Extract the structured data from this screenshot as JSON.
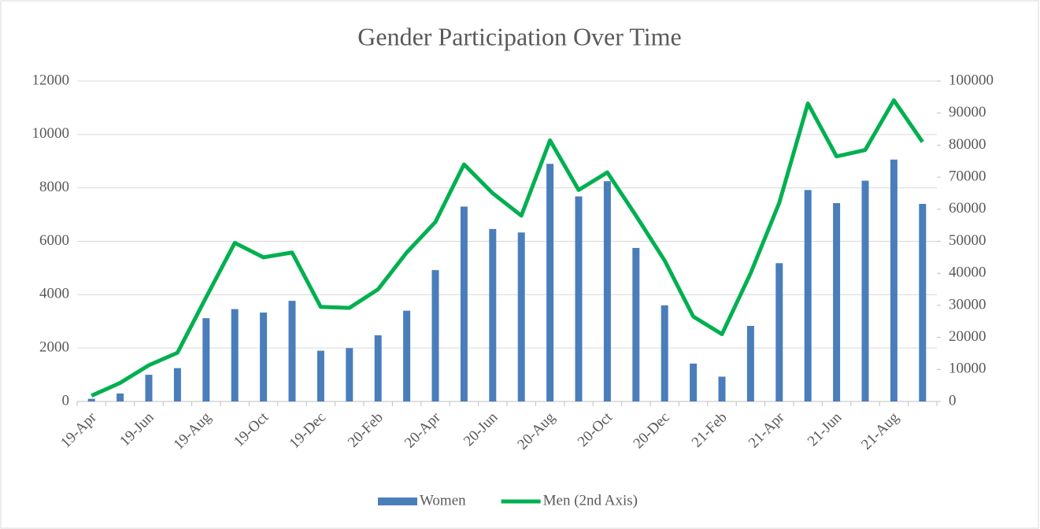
{
  "chart_data": {
    "type": "bar_line",
    "title": "Gender Participation Over Time",
    "categories": [
      "19-Apr",
      null,
      "19-Jun",
      null,
      "19-Aug",
      null,
      "19-Oct",
      null,
      "19-Dec",
      null,
      "20-Feb",
      null,
      "20-Apr",
      null,
      "20-Jun",
      null,
      "20-Aug",
      null,
      "20-Oct",
      null,
      "20-Dec",
      null,
      "21-Feb",
      null,
      "21-Apr",
      null,
      "21-Jun",
      null,
      "21-Aug",
      null
    ],
    "series": [
      {
        "name": "Women",
        "type": "bar",
        "color": "#4a7ebb",
        "values": [
          100,
          300,
          1000,
          1250,
          3120,
          3460,
          3330,
          3770,
          1900,
          2000,
          2480,
          3400,
          4920,
          7300,
          6460,
          6330,
          8900,
          7680,
          8250,
          5750,
          3600,
          1420,
          930,
          2830,
          5180,
          7920,
          7430,
          8270,
          9060,
          7400
        ]
      },
      {
        "name": "Men (2nd Axis)",
        "type": "line",
        "axis": "y2",
        "color": "#00b050",
        "values": [
          1800,
          5800,
          11300,
          15200,
          32500,
          49500,
          45000,
          46500,
          29500,
          29200,
          35000,
          46500,
          56000,
          74000,
          65000,
          58000,
          81500,
          66000,
          71500,
          58000,
          44000,
          26500,
          21000,
          40000,
          62000,
          93000,
          76500,
          78500,
          94000,
          81000
        ]
      }
    ],
    "ylim": [
      0,
      12000
    ],
    "yticks": [
      0,
      2000,
      4000,
      6000,
      8000,
      10000,
      12000
    ],
    "y2lim": [
      0,
      100000
    ],
    "y2ticks": [
      0,
      10000,
      20000,
      30000,
      40000,
      50000,
      60000,
      70000,
      80000,
      90000,
      100000
    ],
    "grid": true,
    "legend": "bottom"
  }
}
